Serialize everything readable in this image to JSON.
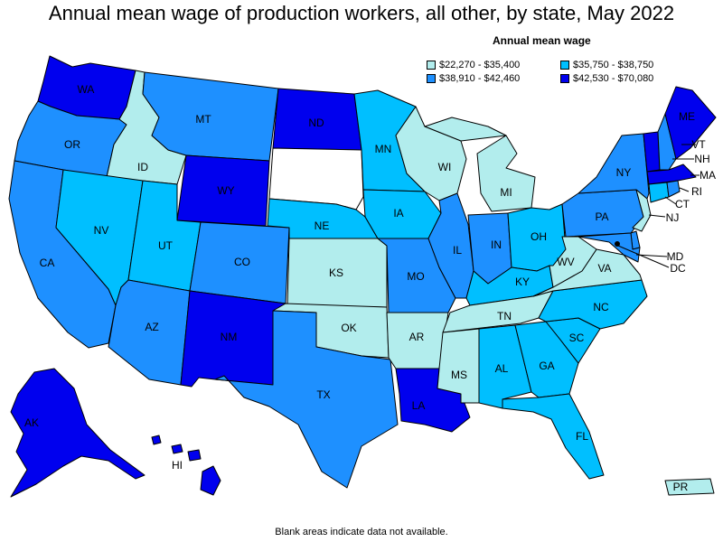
{
  "title": "Annual mean wage of production workers, all other, by state, May 2022",
  "legend": {
    "title": "Annual mean wage",
    "items": [
      {
        "label": "$22,270 - $35,400",
        "color": "#b2eded"
      },
      {
        "label": "$35,750 - $38,750",
        "color": "#00bfff"
      },
      {
        "label": "$38,910 - $42,460",
        "color": "#1e90ff"
      },
      {
        "label": "$42,530 - $70,080",
        "color": "#0000ee"
      }
    ]
  },
  "footnote": "Blank areas indicate data not available.",
  "states": {
    "WA": {
      "label": "WA",
      "bin": 3
    },
    "OR": {
      "label": "OR",
      "bin": 2
    },
    "CA": {
      "label": "CA",
      "bin": 2
    },
    "ID": {
      "label": "ID",
      "bin": 0
    },
    "NV": {
      "label": "NV",
      "bin": 1
    },
    "MT": {
      "label": "MT",
      "bin": 2
    },
    "WY": {
      "label": "WY",
      "bin": 3
    },
    "UT": {
      "label": "UT",
      "bin": 1
    },
    "AZ": {
      "label": "AZ",
      "bin": 2
    },
    "CO": {
      "label": "CO",
      "bin": 2
    },
    "NM": {
      "label": "NM",
      "bin": 3
    },
    "ND": {
      "label": "ND",
      "bin": 3
    },
    "SD": {
      "label": "",
      "bin": -1
    },
    "NE": {
      "label": "NE",
      "bin": 1
    },
    "KS": {
      "label": "KS",
      "bin": 0
    },
    "OK": {
      "label": "OK",
      "bin": 0
    },
    "TX": {
      "label": "TX",
      "bin": 2
    },
    "MN": {
      "label": "MN",
      "bin": 1
    },
    "IA": {
      "label": "IA",
      "bin": 1
    },
    "MO": {
      "label": "MO",
      "bin": 2
    },
    "AR": {
      "label": "AR",
      "bin": 0
    },
    "LA": {
      "label": "LA",
      "bin": 3
    },
    "WI": {
      "label": "WI",
      "bin": 0
    },
    "IL": {
      "label": "IL",
      "bin": 2
    },
    "MI": {
      "label": "MI",
      "bin": 0
    },
    "IN": {
      "label": "IN",
      "bin": 2
    },
    "OH": {
      "label": "OH",
      "bin": 1
    },
    "KY": {
      "label": "KY",
      "bin": 1
    },
    "TN": {
      "label": "TN",
      "bin": 0
    },
    "MS": {
      "label": "MS",
      "bin": 0
    },
    "AL": {
      "label": "AL",
      "bin": 1
    },
    "GA": {
      "label": "GA",
      "bin": 1
    },
    "FL": {
      "label": "FL",
      "bin": 1
    },
    "SC": {
      "label": "SC",
      "bin": 1
    },
    "NC": {
      "label": "NC",
      "bin": 1
    },
    "VA": {
      "label": "VA",
      "bin": 0
    },
    "WV": {
      "label": "WV",
      "bin": 0
    },
    "PA": {
      "label": "PA",
      "bin": 2
    },
    "NY": {
      "label": "NY",
      "bin": 2
    },
    "VT": {
      "label": "VT",
      "bin": 3
    },
    "NH": {
      "label": "NH",
      "bin": 2
    },
    "ME": {
      "label": "ME",
      "bin": 3
    },
    "MA": {
      "label": "MA",
      "bin": 3
    },
    "RI": {
      "label": "RI",
      "bin": 2
    },
    "CT": {
      "label": "CT",
      "bin": 1
    },
    "NJ": {
      "label": "NJ",
      "bin": 0
    },
    "DE": {
      "label": "",
      "bin": 2
    },
    "MD": {
      "label": "MD",
      "bin": 2
    },
    "DC": {
      "label": "DC",
      "bin": 3
    },
    "AK": {
      "label": "AK",
      "bin": 3
    },
    "HI": {
      "label": "HI",
      "bin": 3
    },
    "PR": {
      "label": "PR",
      "bin": 0
    }
  }
}
